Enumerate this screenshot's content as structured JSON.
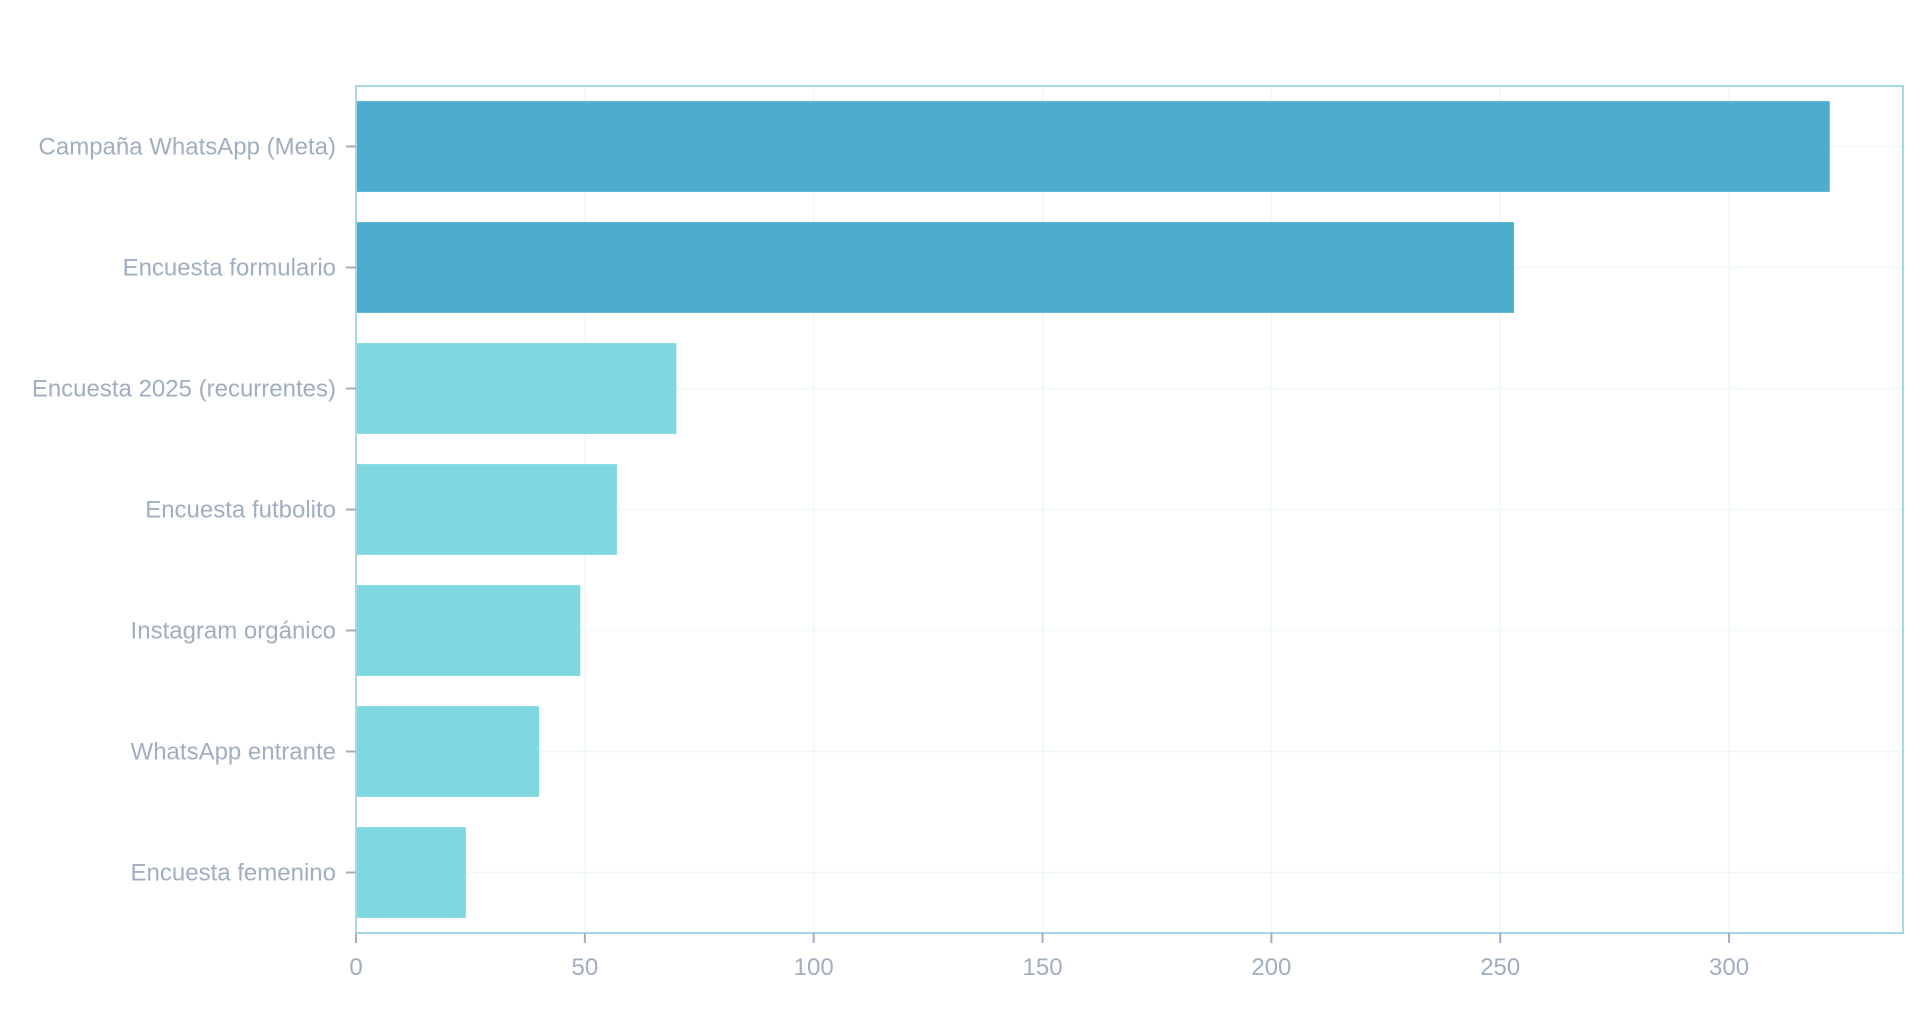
{
  "chart_data": {
    "type": "bar",
    "orientation": "horizontal",
    "title": "",
    "xlabel": "",
    "ylabel": "",
    "categories": [
      "Campaña WhatsApp (Meta)",
      "Encuesta formulario",
      "Encuesta 2025 (recurrentes)",
      "Encuesta futbolito",
      "Instagram orgánico",
      "WhatsApp entrante",
      "Encuesta femenino"
    ],
    "values": [
      322,
      253,
      70,
      57,
      49,
      40,
      24
    ],
    "xlim": [
      0,
      338
    ],
    "xticks": [
      0,
      50,
      100,
      150,
      200,
      250,
      300
    ],
    "xtick_labels": [
      "0",
      "50",
      "100",
      "150",
      "200",
      "250",
      "300"
    ],
    "grid": true,
    "colors": {
      "highlight": "#4EADCE",
      "normal": "#7FD8DF",
      "axis": "#A8D8E6",
      "grid": "#EEF7F9",
      "label": "#A0AEC0"
    },
    "highlight_count": 2
  }
}
